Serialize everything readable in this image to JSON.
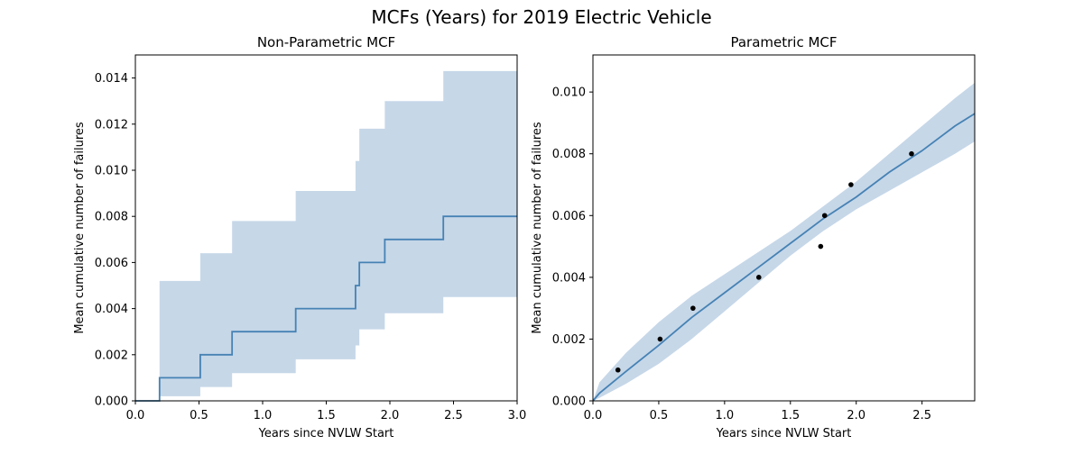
{
  "figure_title": "MCFs (Years) for 2019 Electric Vehicle",
  "colors": {
    "line": "#4682b4",
    "band": "#c6d7e8",
    "point": "#000000",
    "axis": "#000000"
  },
  "chart_data": [
    {
      "type": "line",
      "subtype": "step",
      "title": "Non-Parametric MCF",
      "xlabel": "Years since NVLW Start",
      "ylabel": "Mean cumulative number of failures",
      "xlim": [
        0,
        3.0
      ],
      "ylim": [
        0,
        0.015
      ],
      "xticks": [
        0,
        0.5,
        1.0,
        1.5,
        2.0,
        2.5,
        3.0
      ],
      "xtick_labels": [
        "0.0",
        "0.5",
        "1.0",
        "1.5",
        "2.0",
        "2.5",
        "3.0"
      ],
      "yticks": [
        0,
        0.002,
        0.004,
        0.006,
        0.008,
        0.01,
        0.012,
        0.014
      ],
      "ytick_labels": [
        "0.000",
        "0.002",
        "0.004",
        "0.006",
        "0.008",
        "0.010",
        "0.012",
        "0.014"
      ],
      "grid": false,
      "steps": [
        {
          "x": 0.0,
          "y": 0.0,
          "lower": 0.0,
          "upper": 0.0
        },
        {
          "x": 0.19,
          "y": 0.001,
          "lower": 0.0002,
          "upper": 0.0052
        },
        {
          "x": 0.51,
          "y": 0.002,
          "lower": 0.0006,
          "upper": 0.0064
        },
        {
          "x": 0.76,
          "y": 0.003,
          "lower": 0.0012,
          "upper": 0.0078
        },
        {
          "x": 1.26,
          "y": 0.004,
          "lower": 0.0018,
          "upper": 0.0091
        },
        {
          "x": 1.73,
          "y": 0.005,
          "lower": 0.0024,
          "upper": 0.0104
        },
        {
          "x": 1.76,
          "y": 0.006,
          "lower": 0.0031,
          "upper": 0.0118
        },
        {
          "x": 1.96,
          "y": 0.007,
          "lower": 0.0038,
          "upper": 0.013
        },
        {
          "x": 2.42,
          "y": 0.008,
          "lower": 0.0045,
          "upper": 0.0143
        }
      ],
      "x_end": 3.0
    },
    {
      "type": "line",
      "subtype": "fit_with_points",
      "title": "Parametric MCF",
      "xlabel": "Years since NVLW Start",
      "ylabel": "Mean cumulative number of failures",
      "xlim": [
        0,
        2.9
      ],
      "ylim": [
        0,
        0.0112
      ],
      "xticks": [
        0,
        0.5,
        1.0,
        1.5,
        2.0,
        2.5
      ],
      "xtick_labels": [
        "0.0",
        "0.5",
        "1.0",
        "1.5",
        "2.0",
        "2.5"
      ],
      "yticks": [
        0,
        0.002,
        0.004,
        0.006,
        0.008,
        0.01
      ],
      "ytick_labels": [
        "0.000",
        "0.002",
        "0.004",
        "0.006",
        "0.008",
        "0.010"
      ],
      "grid": false,
      "points": [
        {
          "x": 0.19,
          "y": 0.001
        },
        {
          "x": 0.51,
          "y": 0.002
        },
        {
          "x": 0.76,
          "y": 0.003
        },
        {
          "x": 1.26,
          "y": 0.004
        },
        {
          "x": 1.73,
          "y": 0.005
        },
        {
          "x": 1.76,
          "y": 0.006
        },
        {
          "x": 1.96,
          "y": 0.007
        },
        {
          "x": 2.42,
          "y": 0.008
        }
      ],
      "fit": [
        {
          "x": 0.0,
          "y": 0.0,
          "lower": 0.0,
          "upper": 0.0
        },
        {
          "x": 0.05,
          "y": 0.00025,
          "lower": 0.0001,
          "upper": 0.0006
        },
        {
          "x": 0.25,
          "y": 0.00095,
          "lower": 0.00055,
          "upper": 0.00155
        },
        {
          "x": 0.5,
          "y": 0.0018,
          "lower": 0.0012,
          "upper": 0.00255
        },
        {
          "x": 0.75,
          "y": 0.0027,
          "lower": 0.002,
          "upper": 0.0034
        },
        {
          "x": 1.0,
          "y": 0.0035,
          "lower": 0.0029,
          "upper": 0.0041
        },
        {
          "x": 1.25,
          "y": 0.0043,
          "lower": 0.0038,
          "upper": 0.0048
        },
        {
          "x": 1.5,
          "y": 0.0051,
          "lower": 0.0047,
          "upper": 0.0055
        },
        {
          "x": 1.75,
          "y": 0.0059,
          "lower": 0.0055,
          "upper": 0.0063
        },
        {
          "x": 2.0,
          "y": 0.0066,
          "lower": 0.0062,
          "upper": 0.0071
        },
        {
          "x": 2.25,
          "y": 0.0074,
          "lower": 0.0068,
          "upper": 0.008
        },
        {
          "x": 2.5,
          "y": 0.0081,
          "lower": 0.0074,
          "upper": 0.0089
        },
        {
          "x": 2.75,
          "y": 0.0089,
          "lower": 0.008,
          "upper": 0.0098
        },
        {
          "x": 2.9,
          "y": 0.0093,
          "lower": 0.0084,
          "upper": 0.0103
        }
      ]
    }
  ]
}
